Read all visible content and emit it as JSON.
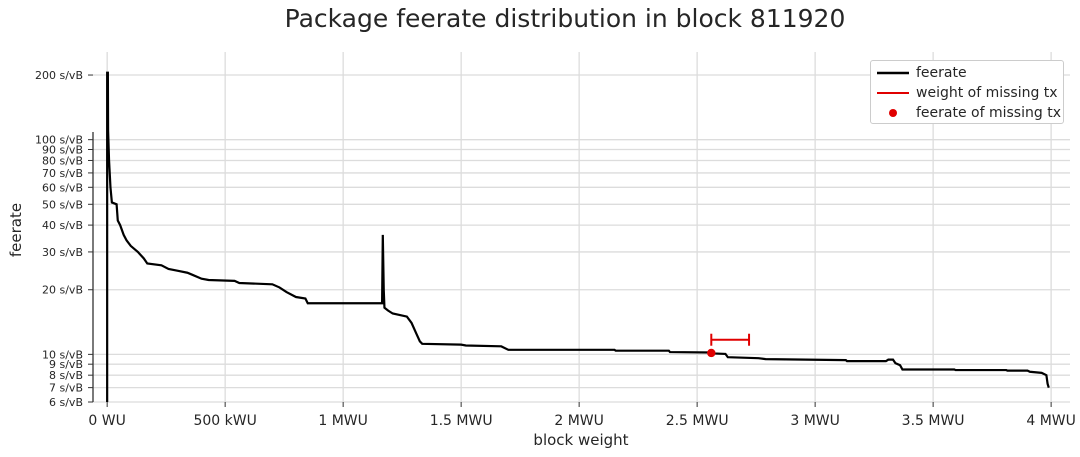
{
  "chart_data": {
    "type": "line",
    "title": "Package feerate distribution in block 811920",
    "xlabel": "block weight",
    "ylabel": "feerate",
    "yscale": "log",
    "xlim": [
      -60000,
      4080000
    ],
    "ylim": [
      6,
      230
    ],
    "grid": true,
    "legend_position": "top-right",
    "x_ticks": [
      {
        "value": 0,
        "label": "0 WU"
      },
      {
        "value": 500000,
        "label": "500 kWU"
      },
      {
        "value": 1000000,
        "label": "1 MWU"
      },
      {
        "value": 1500000,
        "label": "1.5 MWU"
      },
      {
        "value": 2000000,
        "label": "2 MWU"
      },
      {
        "value": 2500000,
        "label": "2.5 MWU"
      },
      {
        "value": 3000000,
        "label": "3 MWU"
      },
      {
        "value": 3500000,
        "label": "3.5 MWU"
      },
      {
        "value": 4000000,
        "label": "4 MWU"
      }
    ],
    "y_ticks": [
      {
        "value": 6,
        "label": "6 s/vB"
      },
      {
        "value": 7,
        "label": "7 s/vB"
      },
      {
        "value": 8,
        "label": "8 s/vB"
      },
      {
        "value": 9,
        "label": "9 s/vB"
      },
      {
        "value": 10,
        "label": "10 s/vB"
      },
      {
        "value": 20,
        "label": "20 s/vB"
      },
      {
        "value": 30,
        "label": "30 s/vB"
      },
      {
        "value": 40,
        "label": "40 s/vB"
      },
      {
        "value": 50,
        "label": "50 s/vB"
      },
      {
        "value": 60,
        "label": "60 s/vB"
      },
      {
        "value": 70,
        "label": "70 s/vB"
      },
      {
        "value": 80,
        "label": "80 s/vB"
      },
      {
        "value": 90,
        "label": "90 s/vB"
      },
      {
        "value": 100,
        "label": "100 s/vB"
      },
      {
        "value": 200,
        "label": "200 s/vB"
      }
    ],
    "series": [
      {
        "name": "feerate",
        "color": "#000000",
        "points": [
          [
            0,
            6
          ],
          [
            0,
            205
          ],
          [
            3000,
            205
          ],
          [
            4000,
            110
          ],
          [
            8000,
            80
          ],
          [
            14000,
            60
          ],
          [
            20000,
            51
          ],
          [
            40000,
            50
          ],
          [
            45000,
            42
          ],
          [
            55000,
            40
          ],
          [
            70000,
            36
          ],
          [
            82000,
            34
          ],
          [
            100000,
            32
          ],
          [
            130000,
            30
          ],
          [
            155000,
            28
          ],
          [
            170000,
            26.5
          ],
          [
            230000,
            26
          ],
          [
            260000,
            25
          ],
          [
            300000,
            24.5
          ],
          [
            340000,
            24
          ],
          [
            360000,
            23.5
          ],
          [
            400000,
            22.5
          ],
          [
            430000,
            22.2
          ],
          [
            540000,
            22
          ],
          [
            560000,
            21.5
          ],
          [
            700000,
            21.2
          ],
          [
            730000,
            20.5
          ],
          [
            760000,
            19.5
          ],
          [
            800000,
            18.5
          ],
          [
            840000,
            18.2
          ],
          [
            850000,
            17.3
          ],
          [
            1165000,
            17.3
          ],
          [
            1168000,
            36
          ],
          [
            1172000,
            20
          ],
          [
            1175000,
            16.5
          ],
          [
            1190000,
            16
          ],
          [
            1210000,
            15.5
          ],
          [
            1270000,
            15
          ],
          [
            1290000,
            14
          ],
          [
            1310000,
            12.5
          ],
          [
            1325000,
            11.5
          ],
          [
            1335000,
            11.2
          ],
          [
            1500000,
            11.1
          ],
          [
            1520000,
            11
          ],
          [
            1670000,
            10.9
          ],
          [
            1700000,
            10.5
          ],
          [
            2150000,
            10.5
          ],
          [
            2155000,
            10.4
          ],
          [
            2380000,
            10.4
          ],
          [
            2385000,
            10.25
          ],
          [
            2560000,
            10.2
          ],
          [
            2570000,
            10.1
          ],
          [
            2620000,
            10.05
          ],
          [
            2630000,
            9.7
          ],
          [
            2760000,
            9.6
          ],
          [
            2790000,
            9.5
          ],
          [
            3130000,
            9.4
          ],
          [
            3135000,
            9.3
          ],
          [
            3300000,
            9.3
          ],
          [
            3310000,
            9.45
          ],
          [
            3330000,
            9.45
          ],
          [
            3340000,
            9.1
          ],
          [
            3360000,
            8.9
          ],
          [
            3370000,
            8.5
          ],
          [
            3590000,
            8.5
          ],
          [
            3595000,
            8.45
          ],
          [
            3810000,
            8.45
          ],
          [
            3815000,
            8.4
          ],
          [
            3900000,
            8.4
          ],
          [
            3910000,
            8.3
          ],
          [
            3960000,
            8.2
          ],
          [
            3980000,
            8.0
          ],
          [
            3985000,
            7.3
          ],
          [
            3990000,
            7
          ]
        ]
      },
      {
        "name": "weight of missing tx",
        "color": "#e00000",
        "errorbar": {
          "y": 11.7,
          "x_start": 2560000,
          "x_end": 2720000
        }
      },
      {
        "name": "feerate of missing tx",
        "color": "#e00000",
        "marker": {
          "x": 2560000,
          "y": 10.15
        }
      }
    ]
  }
}
